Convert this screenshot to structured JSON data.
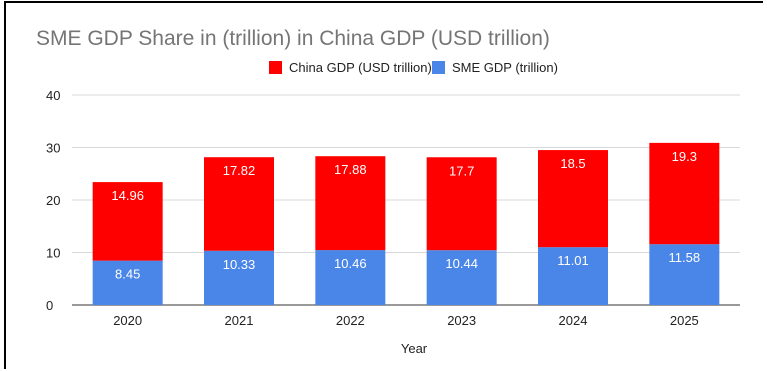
{
  "chart_data": {
    "type": "bar",
    "stacked": true,
    "title": "SME GDP Share in (trillion) in China GDP (USD trillion)",
    "xlabel": "Year",
    "ylabel": "",
    "ylim": [
      0,
      40
    ],
    "yticks": [
      "0",
      "10",
      "20",
      "30",
      "40"
    ],
    "grid": true,
    "legend_position": "top",
    "categories": [
      "2020",
      "2021",
      "2022",
      "2023",
      "2024",
      "2025"
    ],
    "series": [
      {
        "name": "SME GDP (trillion)",
        "color": "#4a86e8",
        "values": [
          8.45,
          10.33,
          10.46,
          10.44,
          11.01,
          11.58
        ],
        "labels": [
          "8.45",
          "10.33",
          "10.46",
          "10.44",
          "11.01",
          "11.58"
        ]
      },
      {
        "name": "China GDP (USD trillion)",
        "color": "#ff0000",
        "values": [
          14.96,
          17.82,
          17.88,
          17.7,
          18.5,
          19.3
        ],
        "labels": [
          "14.96",
          "17.82",
          "17.88",
          "17.7",
          "18.5",
          "19.3"
        ]
      }
    ]
  }
}
